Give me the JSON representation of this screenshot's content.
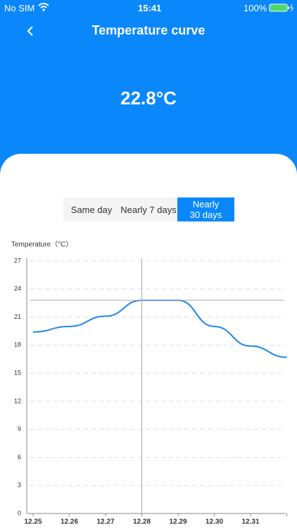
{
  "status_bar": {
    "carrier": "No SIM",
    "time": "15:41",
    "battery": "100%"
  },
  "header": {
    "title": "Temperature curve",
    "current": "22.8°C"
  },
  "tabs": [
    "Same day",
    "Nearly 7 days",
    "Nearly 30 days"
  ],
  "chart_data": {
    "type": "line",
    "y_label": "Temperature（°C）",
    "categories": [
      "12.25",
      "12.26",
      "12.27",
      "12.28",
      "12.29",
      "12.30",
      "12.31",
      null
    ],
    "series": [
      {
        "name": "Temperature",
        "color": "#1e88e5",
        "values": [
          19.4,
          20.0,
          21.1,
          22.8,
          22.8,
          20.0,
          17.9,
          16.7
        ]
      }
    ],
    "ylim": [
      0,
      27
    ],
    "yticks": [
      0,
      3,
      6,
      9,
      12,
      15,
      18,
      21,
      24,
      27
    ],
    "grid": true
  }
}
